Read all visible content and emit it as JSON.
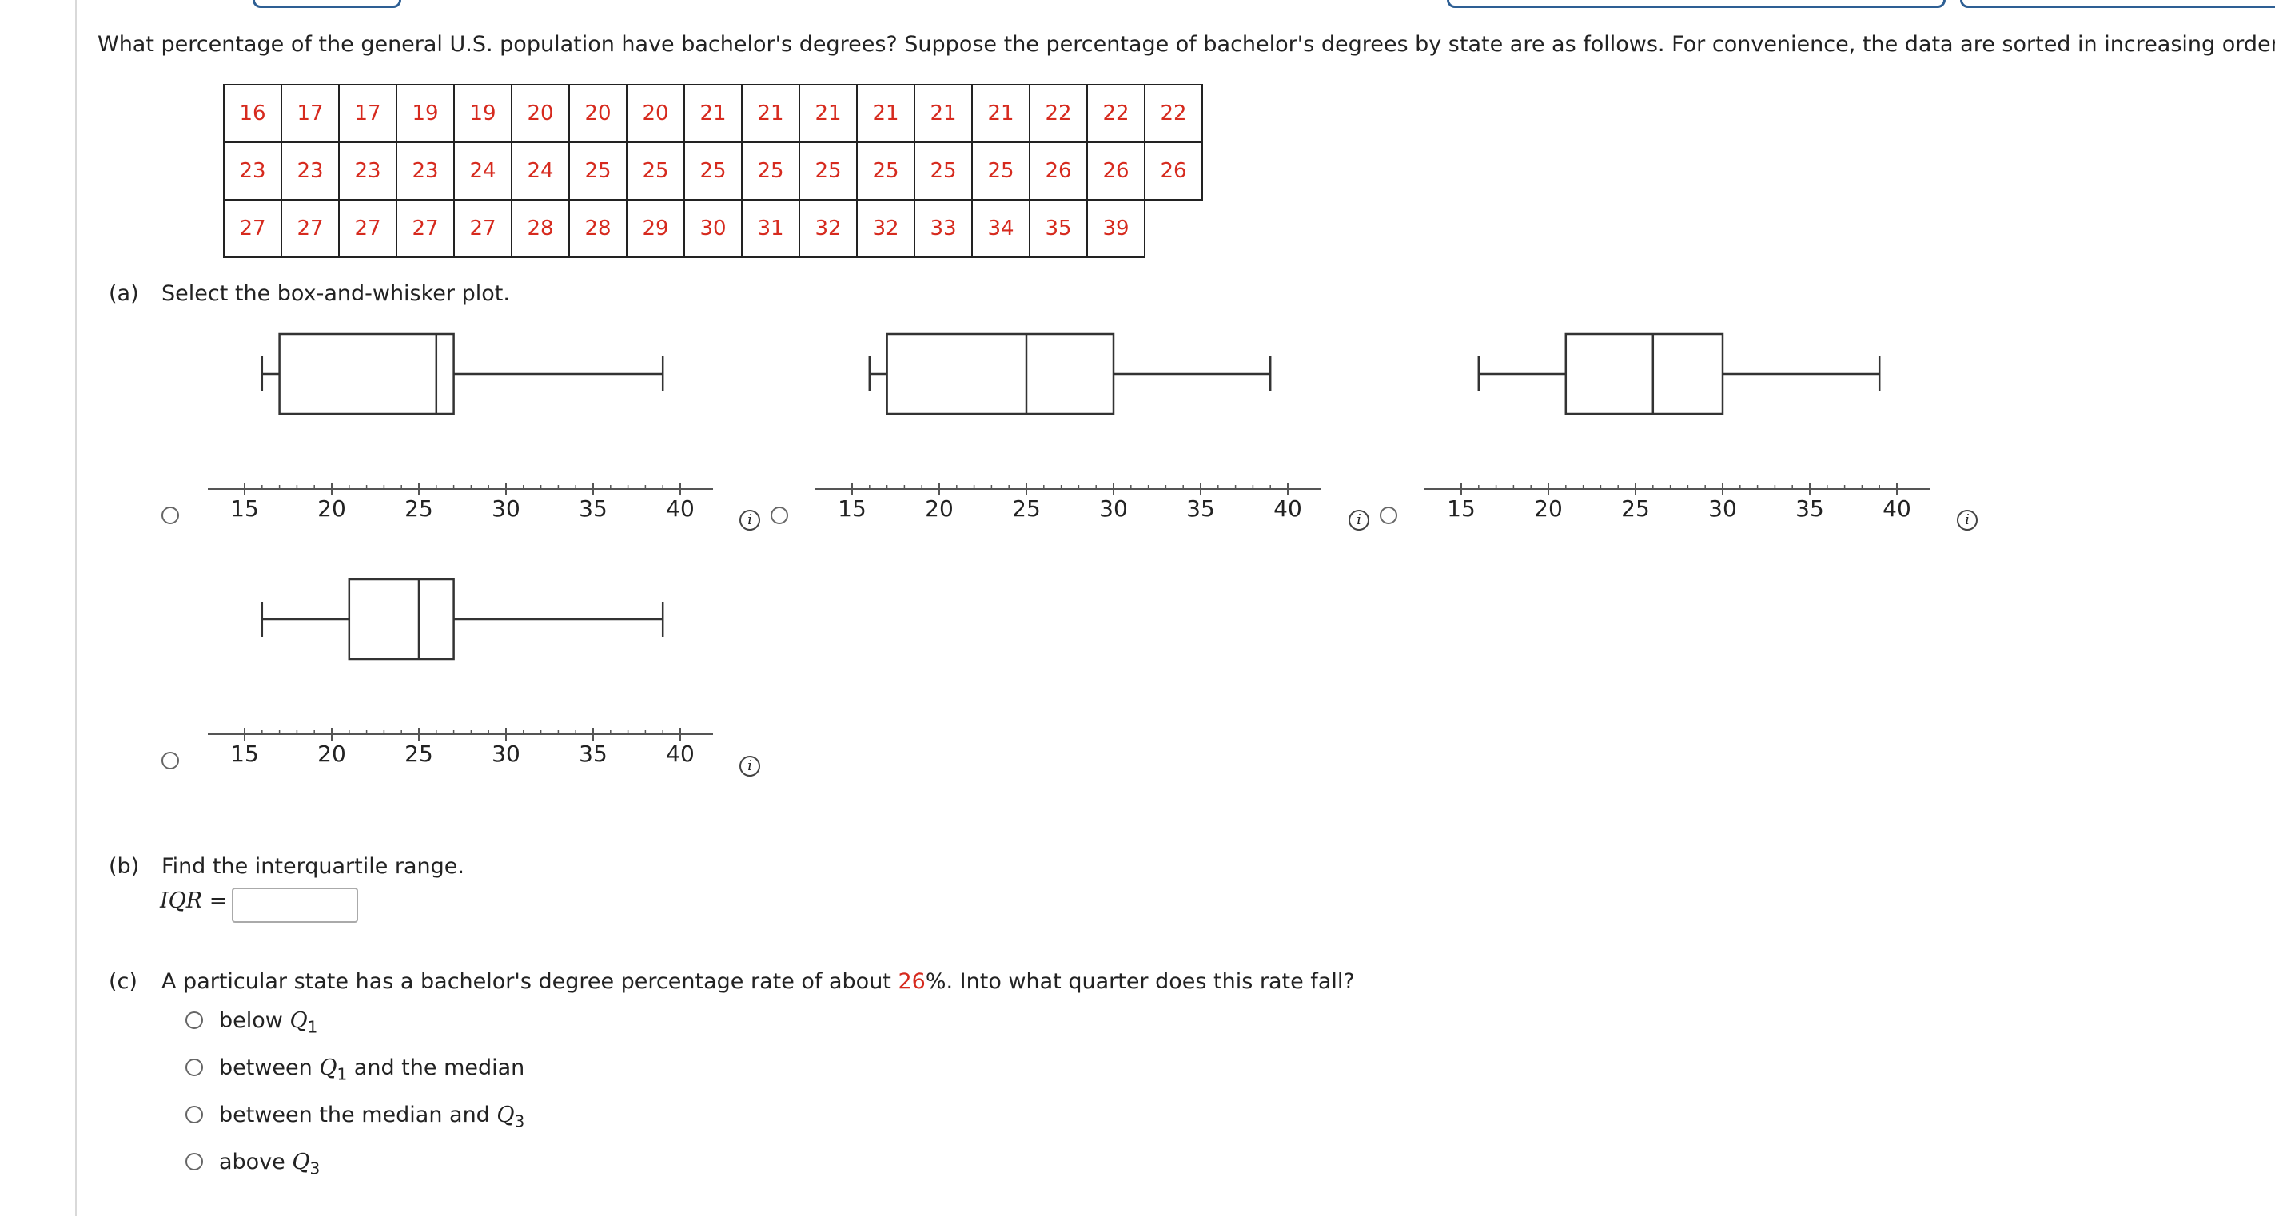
{
  "question": {
    "intro": "What percentage of the general U.S. population have bachelor's degrees? Suppose the percentage of bachelor's degrees by state are as follows. For convenience, the data are sorted in increasing order.",
    "data_rows": [
      [
        "16",
        "17",
        "17",
        "19",
        "19",
        "20",
        "20",
        "20",
        "21",
        "21",
        "21",
        "21",
        "21",
        "21",
        "22",
        "22",
        "22"
      ],
      [
        "23",
        "23",
        "23",
        "23",
        "24",
        "24",
        "25",
        "25",
        "25",
        "25",
        "25",
        "25",
        "25",
        "25",
        "26",
        "26",
        "26"
      ],
      [
        "27",
        "27",
        "27",
        "27",
        "27",
        "28",
        "28",
        "29",
        "30",
        "31",
        "32",
        "32",
        "33",
        "34",
        "35",
        "39"
      ]
    ]
  },
  "part_a": {
    "letter": "(a)",
    "prompt": "Select the box-and-whisker plot.",
    "axis_ticks": [
      "15",
      "20",
      "25",
      "30",
      "35",
      "40"
    ],
    "axis_range": [
      15,
      40
    ],
    "options": [
      {
        "min": 16,
        "q1": 17,
        "median": 26,
        "q3": 27,
        "max": 39
      },
      {
        "min": 16,
        "q1": 17,
        "median": 25,
        "q3": 30,
        "max": 39
      },
      {
        "min": 16,
        "q1": 21,
        "median": 26,
        "q3": 30,
        "max": 39
      },
      {
        "min": 16,
        "q1": 21,
        "median": 25,
        "q3": 27,
        "max": 39
      }
    ],
    "info_symbol": "i"
  },
  "part_b": {
    "letter": "(b)",
    "prompt": "Find the interquartile range.",
    "iqr_label": "IQR",
    "equals": "=",
    "iqr_value": ""
  },
  "part_c": {
    "letter": "(c)",
    "prompt_before": "A particular state has a bachelor's degree percentage rate of about ",
    "rate": "26",
    "prompt_after": "%. Into what quarter does this rate fall?",
    "choices": [
      {
        "pre": "below ",
        "q": "Q",
        "sub": "1",
        "post": ""
      },
      {
        "pre": "between ",
        "q": "Q",
        "sub": "1",
        "post": " and the median"
      },
      {
        "pre": "between the median and ",
        "q": "Q",
        "sub": "3",
        "post": ""
      },
      {
        "pre": "above ",
        "q": "Q",
        "sub": "3",
        "post": ""
      }
    ]
  }
}
